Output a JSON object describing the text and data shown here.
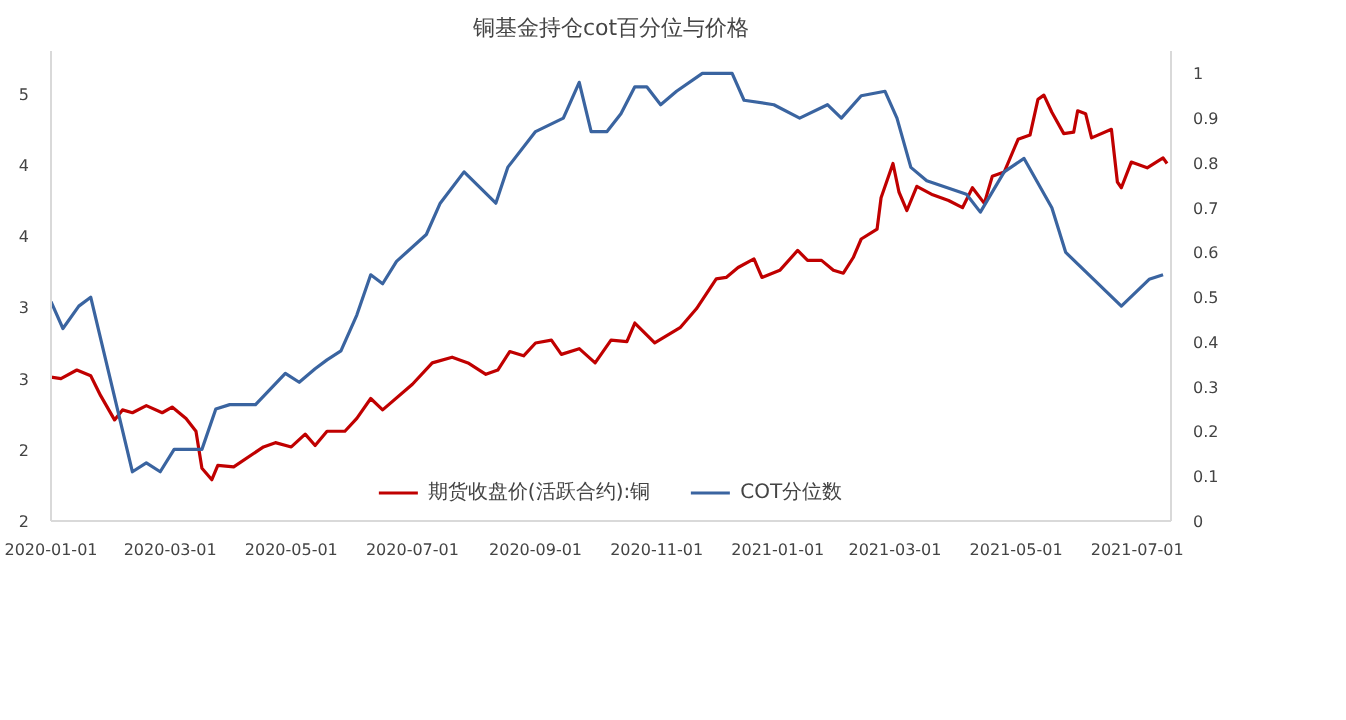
{
  "chart_data": {
    "type": "line",
    "title": "铜基金持仓cot百分位与价格",
    "xlim": [
      "2020-01-01",
      "2021-07-18"
    ],
    "xticks": [
      "2020-01-01",
      "2020-03-01",
      "2020-05-01",
      "2020-07-01",
      "2020-09-01",
      "2020-11-01",
      "2021-01-01",
      "2021-03-01",
      "2021-05-01",
      "2021-07-01"
    ],
    "ylim": [
      2,
      5.3
    ],
    "yticks": [
      {
        "value": 2,
        "label": "2"
      },
      {
        "value": 2.5,
        "label": "2"
      },
      {
        "value": 3,
        "label": "3"
      },
      {
        "value": 3.5,
        "label": "3"
      },
      {
        "value": 4,
        "label": "4"
      },
      {
        "value": 4.5,
        "label": "4"
      },
      {
        "value": 5,
        "label": "5"
      }
    ],
    "y2lim": [
      0,
      1.05
    ],
    "y2ticks": [
      0,
      0.1,
      0.2,
      0.3,
      0.4,
      0.5,
      0.6,
      0.7,
      0.8,
      0.9,
      1
    ],
    "grid": false,
    "legend": "bottom",
    "line_style": "solid",
    "marker": "none",
    "series": [
      {
        "name": "期货收盘价(活跃合约):铜",
        "color": "#c00000",
        "x": [
          "2020-01-01",
          "2020-01-06",
          "2020-01-14",
          "2020-01-21",
          "2020-01-26",
          "2020-02-02",
          "2020-02-06",
          "2020-02-11",
          "2020-02-18",
          "2020-02-26",
          "2020-03-02",
          "2020-03-09",
          "2020-03-14",
          "2020-03-17",
          "2020-03-22",
          "2020-03-25",
          "2020-04-02",
          "2020-04-17",
          "2020-04-23",
          "2020-05-01",
          "2020-05-08",
          "2020-05-13",
          "2020-05-19",
          "2020-05-28",
          "2020-06-03",
          "2020-06-10",
          "2020-06-16",
          "2020-07-01",
          "2020-07-11",
          "2020-07-21",
          "2020-07-29",
          "2020-08-07",
          "2020-08-13",
          "2020-08-19",
          "2020-08-26",
          "2020-09-01",
          "2020-09-09",
          "2020-09-14",
          "2020-09-23",
          "2020-10-01",
          "2020-10-09",
          "2020-10-17",
          "2020-10-21",
          "2020-10-31",
          "2020-11-13",
          "2020-11-21",
          "2020-12-01",
          "2020-12-06",
          "2020-12-12",
          "2020-12-20",
          "2020-12-24",
          "2021-01-02",
          "2021-01-11",
          "2021-01-16",
          "2021-01-23",
          "2021-01-29",
          "2021-02-03",
          "2021-02-08",
          "2021-02-12",
          "2021-02-20",
          "2021-02-22",
          "2021-02-28",
          "2021-03-03",
          "2021-03-07",
          "2021-03-12",
          "2021-03-20",
          "2021-03-28",
          "2021-04-04",
          "2021-04-09",
          "2021-04-15",
          "2021-04-19",
          "2021-04-25",
          "2021-05-02",
          "2021-05-08",
          "2021-05-12",
          "2021-05-15",
          "2021-05-19",
          "2021-05-25",
          "2021-05-30",
          "2021-06-01",
          "2021-06-05",
          "2021-06-08",
          "2021-06-18",
          "2021-06-21",
          "2021-06-23",
          "2021-06-28",
          "2021-07-06",
          "2021-07-14",
          "2021-07-16"
        ],
        "values": [
          3.01,
          3.0,
          3.06,
          3.02,
          2.88,
          2.71,
          2.78,
          2.76,
          2.81,
          2.76,
          2.8,
          2.72,
          2.63,
          2.37,
          2.29,
          2.39,
          2.38,
          2.52,
          2.55,
          2.52,
          2.61,
          2.53,
          2.63,
          2.63,
          2.72,
          2.86,
          2.78,
          2.96,
          3.11,
          3.15,
          3.11,
          3.03,
          3.06,
          3.19,
          3.16,
          3.25,
          3.27,
          3.17,
          3.21,
          3.11,
          3.27,
          3.26,
          3.39,
          3.25,
          3.36,
          3.49,
          3.7,
          3.71,
          3.78,
          3.84,
          3.71,
          3.76,
          3.9,
          3.83,
          3.83,
          3.76,
          3.74,
          3.85,
          3.98,
          4.05,
          4.27,
          4.51,
          4.31,
          4.18,
          4.35,
          4.29,
          4.25,
          4.2,
          4.34,
          4.23,
          4.42,
          4.45,
          4.68,
          4.71,
          4.96,
          4.99,
          4.87,
          4.72,
          4.73,
          4.88,
          4.86,
          4.69,
          4.75,
          4.38,
          4.34,
          4.52,
          4.48,
          4.55,
          4.51
        ]
      },
      {
        "name": "COT分位数",
        "color": "#3a64a0",
        "axis": "y2",
        "x": [
          "2020-01-01",
          "2020-01-07",
          "2020-01-15",
          "2020-01-21",
          "2020-02-11",
          "2020-02-18",
          "2020-02-25",
          "2020-03-03",
          "2020-03-15",
          "2020-03-17",
          "2020-03-24",
          "2020-03-31",
          "2020-04-13",
          "2020-04-28",
          "2020-05-05",
          "2020-05-13",
          "2020-05-19",
          "2020-05-26",
          "2020-06-03",
          "2020-06-10",
          "2020-06-16",
          "2020-06-23",
          "2020-07-08",
          "2020-07-15",
          "2020-07-27",
          "2020-08-12",
          "2020-08-18",
          "2020-09-01",
          "2020-09-15",
          "2020-09-23",
          "2020-09-29",
          "2020-10-07",
          "2020-10-14",
          "2020-10-21",
          "2020-10-27",
          "2020-11-03",
          "2020-11-11",
          "2020-11-24",
          "2020-12-09",
          "2020-12-15",
          "2020-12-30",
          "2021-01-12",
          "2021-01-26",
          "2021-02-02",
          "2021-02-12",
          "2021-02-24",
          "2021-03-02",
          "2021-03-09",
          "2021-03-17",
          "2021-04-06",
          "2021-04-13",
          "2021-04-25",
          "2021-05-05",
          "2021-05-19",
          "2021-05-26",
          "2021-06-23",
          "2021-07-07",
          "2021-07-14"
        ],
        "values": [
          0.49,
          0.43,
          0.48,
          0.5,
          0.11,
          0.13,
          0.11,
          0.16,
          0.16,
          0.16,
          0.25,
          0.26,
          0.26,
          0.33,
          0.31,
          0.34,
          0.36,
          0.38,
          0.46,
          0.55,
          0.53,
          0.58,
          0.64,
          0.71,
          0.78,
          0.71,
          0.79,
          0.87,
          0.9,
          0.98,
          0.87,
          0.87,
          0.91,
          0.97,
          0.97,
          0.93,
          0.96,
          1.0,
          1.0,
          0.94,
          0.93,
          0.9,
          0.93,
          0.9,
          0.95,
          0.96,
          0.9,
          0.79,
          0.76,
          0.73,
          0.69,
          0.78,
          0.81,
          0.7,
          0.6,
          0.48,
          0.54,
          0.55
        ]
      }
    ]
  }
}
